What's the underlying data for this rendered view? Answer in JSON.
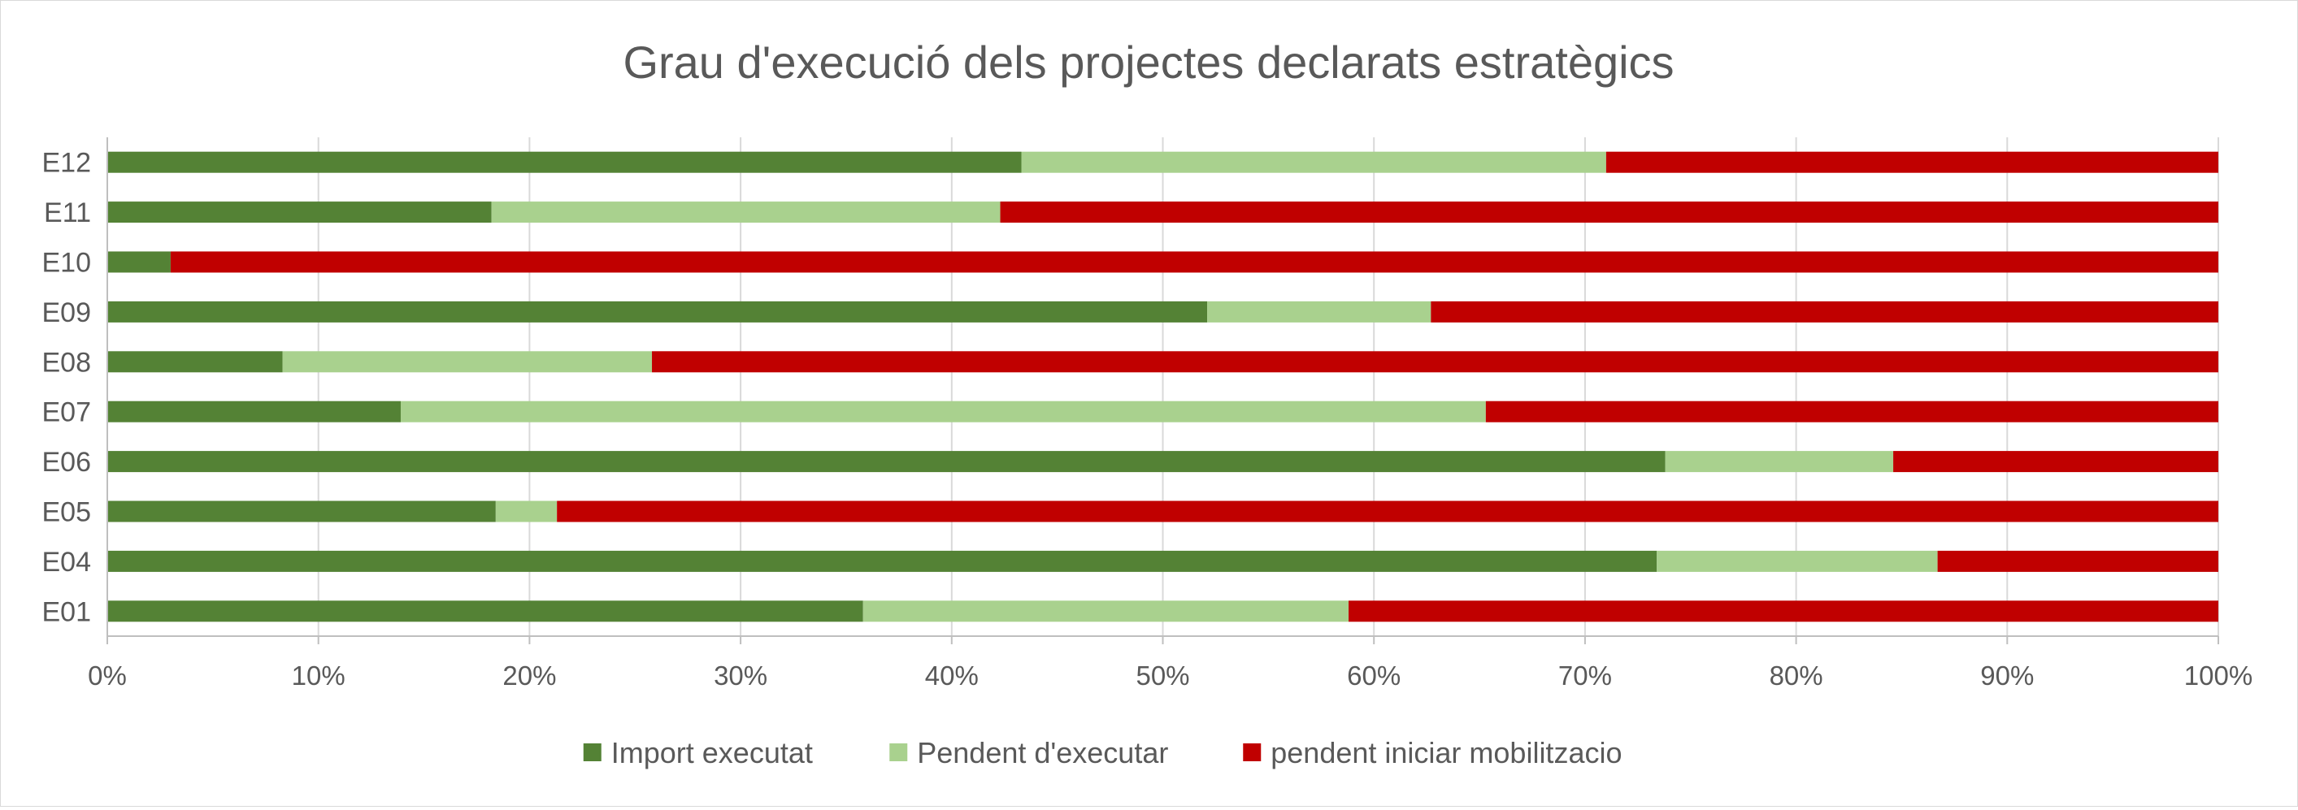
{
  "chart_data": {
    "type": "bar",
    "orientation": "horizontal",
    "stacked": "percent",
    "title": "Grau d'execució dels projectes declarats estratègics",
    "xlabel": "",
    "ylabel": "",
    "xlim": [
      0,
      1
    ],
    "x_ticks": [
      "0%",
      "10%",
      "20%",
      "30%",
      "40%",
      "50%",
      "60%",
      "70%",
      "80%",
      "90%",
      "100%"
    ],
    "gridlines": "vertical",
    "legend_position": "bottom",
    "categories": [
      "E01",
      "E04",
      "E05",
      "E06",
      "E07",
      "E08",
      "E09",
      "E10",
      "E11",
      "E12"
    ],
    "series": [
      {
        "name": "Import executat",
        "color": "#548235",
        "values": [
          0.358,
          0.734,
          0.184,
          0.738,
          0.139,
          0.083,
          0.521,
          0.03,
          0.182,
          0.433
        ]
      },
      {
        "name": "Pendent d'executar",
        "color": "#a9d18e",
        "values": [
          0.23,
          0.133,
          0.029,
          0.108,
          0.514,
          0.175,
          0.106,
          0.0,
          0.241,
          0.277
        ]
      },
      {
        "name": "pendent iniciar mobilitzacio",
        "color": "#c00000",
        "values": [
          0.412,
          0.133,
          0.787,
          0.154,
          0.347,
          0.742,
          0.373,
          0.97,
          0.577,
          0.29
        ]
      }
    ]
  }
}
